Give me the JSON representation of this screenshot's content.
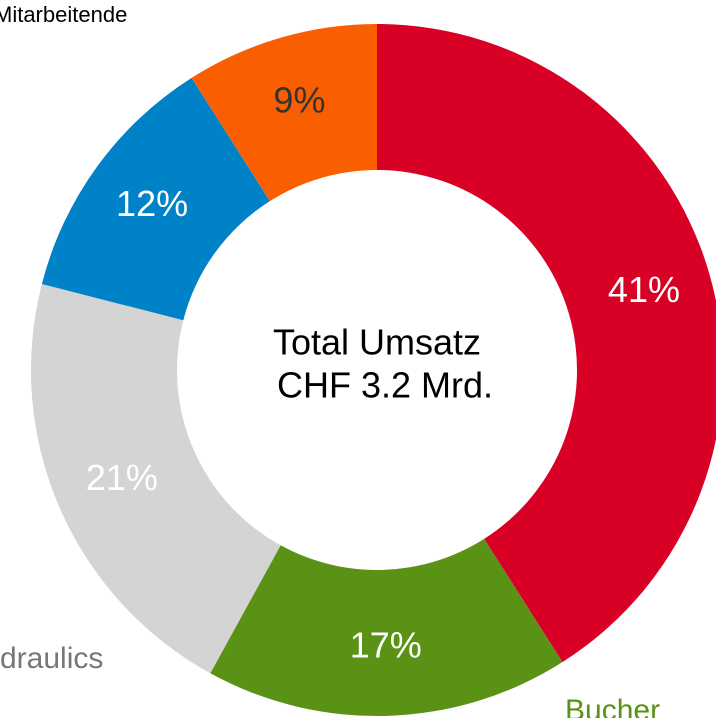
{
  "chart_data": {
    "type": "donut",
    "values": [
      41,
      17,
      21,
      12,
      9
    ],
    "value_labels": [
      "41%",
      "17%",
      "21%",
      "12%",
      "9%"
    ],
    "colors": [
      "#d90026",
      "#5a9216",
      "#d4d4d4",
      "#0082c8",
      "#f95f00"
    ],
    "label_colors": [
      "#ffffff",
      "#ffffff",
      "#ffffff",
      "#ffffff",
      "#333333"
    ],
    "center_label": [
      "Total Umsatz",
      "CHF 3.2 Mrd."
    ],
    "annotations": [
      {
        "text": "Mitarbeitende",
        "color": "#000000"
      },
      {
        "text": "draulics",
        "color": "#777777"
      },
      {
        "text": "Bucher",
        "color": "#5a9216"
      }
    ]
  }
}
